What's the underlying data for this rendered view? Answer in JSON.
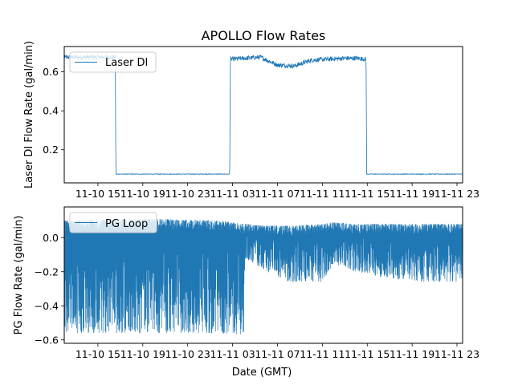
{
  "chart_data": [
    {
      "type": "line",
      "title": "APOLLO Flow Rates",
      "xlabel": "",
      "ylabel": "Laser DI Flow Rate (gal/min)",
      "xlim_hours": [
        12.0,
        47.5
      ],
      "ylim": [
        0.03,
        0.73
      ],
      "yticks": [
        0.2,
        0.4,
        0.6
      ],
      "ytick_labels": [
        "0.2",
        "0.4",
        "0.6"
      ],
      "xtick_hours": [
        15,
        19,
        23,
        27,
        31,
        35,
        39,
        43,
        47
      ],
      "xtick_labels": [
        "11-10 15",
        "11-10 19",
        "11-10 23",
        "11-11 03",
        "11-11 07",
        "11-11 11",
        "11-11 15",
        "11-11 19",
        "11-11 23"
      ],
      "legend": {
        "label": "Laser DI",
        "loc": "upper left"
      },
      "series": [
        {
          "name": "Laser DI",
          "color": "#1f77b4",
          "points": [
            [
              12.0,
              0.675
            ],
            [
              16.55,
              0.675
            ],
            [
              16.6,
              0.075
            ],
            [
              26.75,
              0.075
            ],
            [
              26.8,
              0.665
            ],
            [
              29.5,
              0.675
            ],
            [
              31.0,
              0.635
            ],
            [
              32.5,
              0.63
            ],
            [
              34.0,
              0.66
            ],
            [
              35.5,
              0.665
            ],
            [
              37.0,
              0.67
            ],
            [
              38.0,
              0.67
            ],
            [
              38.9,
              0.665
            ],
            [
              38.95,
              0.075
            ],
            [
              47.5,
              0.075
            ]
          ],
          "noise": 0.012
        }
      ]
    },
    {
      "type": "line",
      "title": "",
      "xlabel": "Date (GMT)",
      "ylabel": "PG Flow Rate (gal/min)",
      "xlim_hours": [
        12.0,
        47.5
      ],
      "ylim": [
        -0.62,
        0.18
      ],
      "yticks": [
        -0.6,
        -0.4,
        -0.2,
        0.0
      ],
      "ytick_labels": [
        "−0.6",
        "−0.4",
        "−0.2",
        "0.0"
      ],
      "xtick_hours": [
        15,
        19,
        23,
        27,
        31,
        35,
        39,
        43,
        47
      ],
      "xtick_labels": [
        "11-10 15",
        "11-10 19",
        "11-10 23",
        "11-11 03",
        "11-11 07",
        "11-11 11",
        "11-11 15",
        "11-11 19",
        "11-11 23"
      ],
      "legend": {
        "label": "PG Loop",
        "loc": "upper left"
      },
      "series": [
        {
          "name": "PG Loop",
          "color": "#1f77b4",
          "band": [
            [
              12.0,
              0.1,
              -0.56
            ],
            [
              20.0,
              0.11,
              -0.56
            ],
            [
              26.0,
              0.1,
              -0.56
            ],
            [
              28.0,
              0.08,
              -0.57
            ],
            [
              28.1,
              0.08,
              -0.12
            ],
            [
              30.0,
              0.07,
              -0.2
            ],
            [
              32.0,
              0.07,
              -0.26
            ],
            [
              35.0,
              0.08,
              -0.26
            ],
            [
              36.0,
              0.09,
              -0.15
            ],
            [
              38.0,
              0.08,
              -0.2
            ],
            [
              41.0,
              0.08,
              -0.24
            ],
            [
              44.0,
              0.08,
              -0.26
            ],
            [
              47.5,
              0.08,
              -0.26
            ]
          ]
        }
      ]
    }
  ]
}
